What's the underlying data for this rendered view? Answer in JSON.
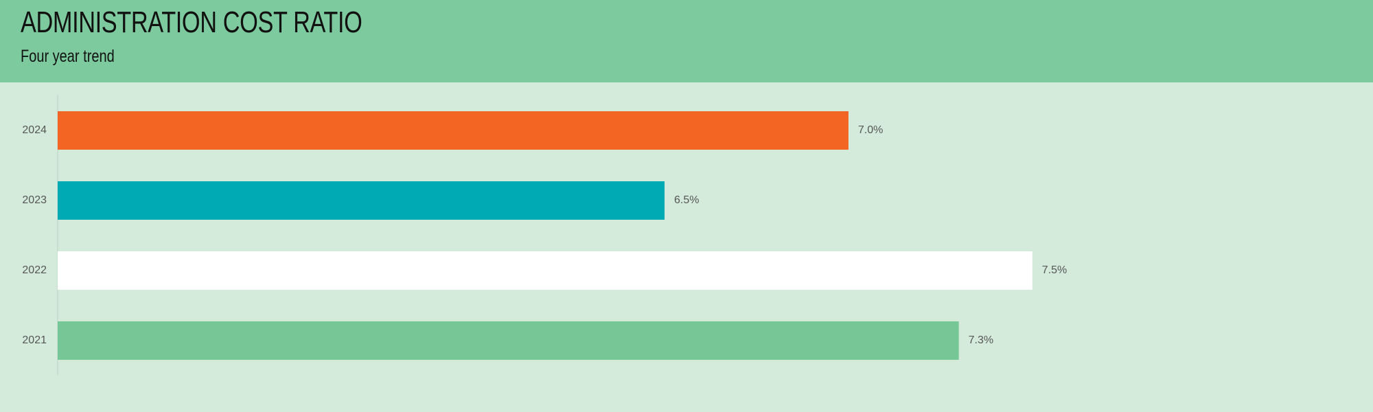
{
  "chart_data": {
    "type": "bar",
    "orientation": "horizontal",
    "title": "ADMINISTRATION COST RATIO",
    "subtitle": "Four year trend",
    "categories": [
      "2024",
      "2023",
      "2022",
      "2021"
    ],
    "values": [
      7.0,
      6.5,
      7.5,
      7.3
    ],
    "value_labels": [
      "7.0%",
      "6.5%",
      "7.5%",
      "7.3%"
    ],
    "colors": [
      "#f26522",
      "#00aab5",
      "#ffffff",
      "#76c795"
    ],
    "xlim": [
      4.85,
      8.4
    ]
  }
}
